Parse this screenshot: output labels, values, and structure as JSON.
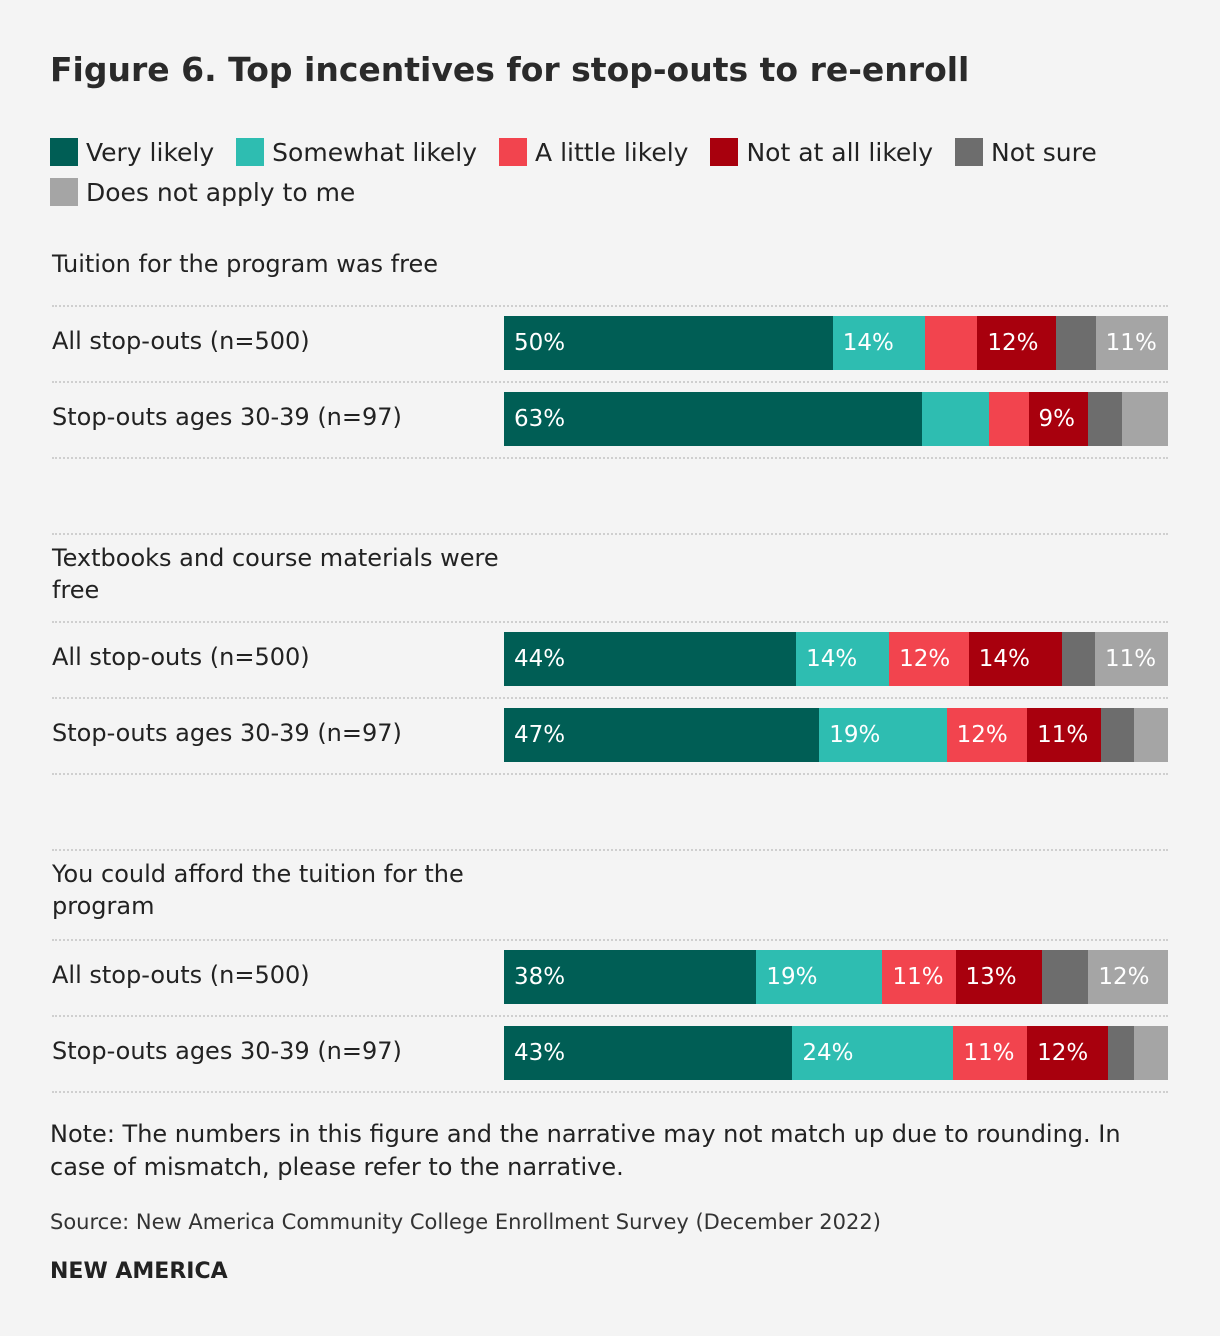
{
  "chart_data": {
    "type": "stacked-bar",
    "title": "Figure 6. Top incentives for stop-outs to re-enroll",
    "groups": [
      {
        "label": "Tuition for the program was free",
        "categories": [
          "All stop-outs (n=500)",
          "Stop-outs ages 30-39 (n=97)"
        ]
      },
      {
        "label": "Textbooks and course materials were free",
        "categories": [
          "All stop-outs (n=500)",
          "Stop-outs ages 30-39 (n=97)"
        ]
      },
      {
        "label": "You could afford the tuition for the program",
        "categories": [
          "All stop-outs (n=500)",
          "Stop-outs ages 30-39 (n=97)"
        ]
      }
    ],
    "series": [
      {
        "name": "Very likely",
        "color": "#005e55",
        "values": [
          50,
          63,
          44,
          47,
          38,
          43
        ],
        "value_labels": [
          "50%",
          "63%",
          "44%",
          "47%",
          "38%",
          "43%"
        ]
      },
      {
        "name": "Somewhat likely",
        "color": "#2ebdb1",
        "values": [
          14,
          10,
          14,
          19,
          19,
          24
        ],
        "value_labels": [
          "14%",
          null,
          "14%",
          "19%",
          "19%",
          "24%"
        ]
      },
      {
        "name": "A little likely",
        "color": "#f2444e",
        "values": [
          8,
          6,
          12,
          12,
          11,
          11
        ],
        "value_labels": [
          null,
          null,
          "12%",
          "12%",
          "11%",
          "11%"
        ]
      },
      {
        "name": "Not at all likely",
        "color": "#a8000d",
        "values": [
          12,
          9,
          14,
          11,
          13,
          12
        ],
        "value_labels": [
          "12%",
          "9%",
          "14%",
          "11%",
          "13%",
          "12%"
        ]
      },
      {
        "name": "Not sure",
        "color": "#6d6d6d",
        "values": [
          6,
          5,
          5,
          5,
          7,
          4
        ],
        "value_labels": [
          null,
          null,
          null,
          null,
          null,
          null
        ]
      },
      {
        "name": "Does not apply to me",
        "color": "#a5a5a5",
        "values": [
          11,
          7,
          11,
          5,
          12,
          5
        ],
        "value_labels": [
          "11%",
          null,
          "11%",
          null,
          "12%",
          null
        ]
      }
    ],
    "note": "Note: The numbers in this figure and the narrative may not match up due to rounding. In case of mismatch, please refer to the narrative.",
    "source": "Source: New America Community College Enrollment Survey (December 2022)",
    "brand": "NEW AMERICA"
  }
}
